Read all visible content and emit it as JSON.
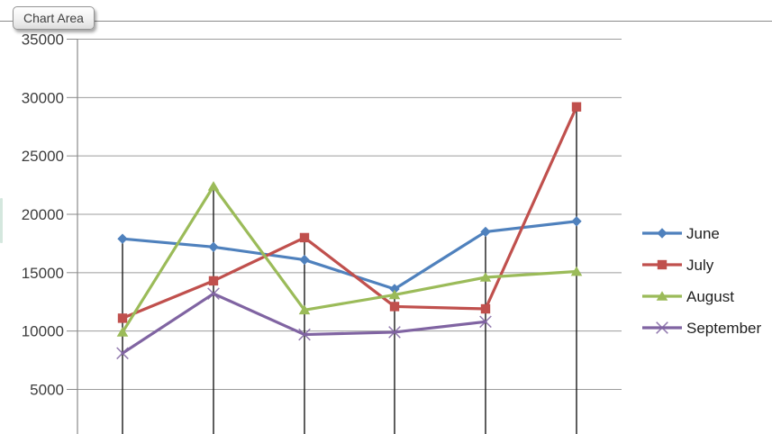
{
  "tooltip": {
    "label": "Chart Area"
  },
  "colors": {
    "june": "#4F81BD",
    "july": "#C0504D",
    "august": "#9BBB59",
    "september": "#8064A2",
    "gridline": "#9c9c9c",
    "axis": "#8a8a8a",
    "drop_line": "#1a1a1a",
    "tick_label": "#3d3d3d",
    "legend_label": "#1f1f1f"
  },
  "chart_data": {
    "type": "line",
    "categories": [
      "",
      "",
      "",
      "",
      "",
      ""
    ],
    "x_axis_labels_visible": false,
    "series": [
      {
        "name": "June",
        "marker": "diamond",
        "color": "#4F81BD",
        "values": [
          17900,
          17200,
          16100,
          13600,
          18500,
          19400
        ]
      },
      {
        "name": "July",
        "marker": "square",
        "color": "#C0504D",
        "values": [
          11100,
          14300,
          18000,
          12100,
          11900,
          29200
        ]
      },
      {
        "name": "August",
        "marker": "triangle",
        "color": "#9BBB59",
        "values": [
          9900,
          22400,
          11800,
          13100,
          14600,
          15100
        ]
      },
      {
        "name": "September",
        "marker": "x",
        "color": "#8064A2",
        "values": [
          8100,
          13200,
          9700,
          9900,
          10800,
          null
        ]
      }
    ],
    "y_axis": {
      "ticks": [
        35000,
        30000,
        25000,
        20000,
        15000,
        10000,
        5000
      ],
      "min": 0,
      "max": 35000
    },
    "ylim": [
      0,
      35000
    ],
    "grid": true,
    "drop_lines": true,
    "legend_position": "right",
    "title": "",
    "xlabel": "",
    "ylabel": ""
  }
}
